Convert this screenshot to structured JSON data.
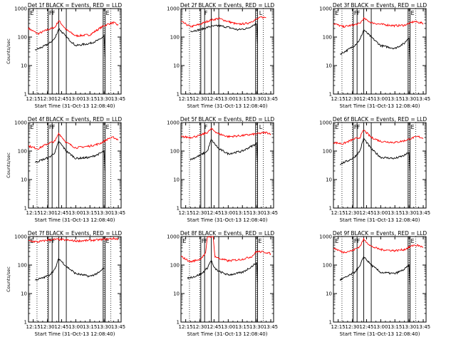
{
  "colors": {
    "events": "#000000",
    "lld": "#ff0000",
    "axis": "#000000"
  },
  "chart_data": [
    {
      "type": "line",
      "title": "Det 1f BLACK = Events, RED = LLD",
      "xlabel": "Start Time (31-Oct-13 12:08:40)",
      "ylabel": "Counts/sec",
      "y_scale": "log",
      "ylim": [
        1,
        1000
      ],
      "xlim": [
        "12:10",
        "13:48"
      ],
      "x_ticks": [
        "12:15",
        "12:30",
        "12:45",
        "13:00",
        "13:15",
        "13:30",
        "13:45"
      ],
      "y_ticks": [
        "1",
        "10",
        "100",
        "1000"
      ],
      "markers": [
        "E",
        "F",
        "F",
        "E"
      ],
      "series": [
        {
          "color": "red",
          "x": [
            "12:10",
            "12:20",
            "12:30",
            "12:38",
            "12:42",
            "12:50",
            "13:00",
            "13:15",
            "13:25",
            "13:30",
            "13:35",
            "13:40",
            "13:45"
          ],
          "y": [
            200,
            130,
            180,
            220,
            380,
            180,
            110,
            120,
            200,
            250,
            290,
            320,
            260
          ]
        },
        {
          "color": "black",
          "x": [
            "12:17",
            "12:25",
            "12:32",
            "12:38",
            "12:42",
            "12:50",
            "13:00",
            "13:15",
            "13:25",
            "13:30",
            "13:31"
          ],
          "y": [
            35,
            45,
            60,
            90,
            200,
            100,
            50,
            60,
            80,
            110,
            20
          ]
        }
      ]
    },
    {
      "type": "line",
      "title": "Det 2f BLACK = Events, RED = LLD",
      "xlabel": "Start Time (31-Oct-13 12:08:40)",
      "ylabel": "",
      "y_scale": "log",
      "ylim": [
        1,
        1000
      ],
      "xlim": [
        "12:10",
        "13:48"
      ],
      "x_ticks": [
        "12:15",
        "12:30",
        "12:45",
        "13:00",
        "13:15",
        "13:30",
        "13:45"
      ],
      "y_ticks": [
        "1",
        "10",
        "100",
        "1000"
      ],
      "markers": [
        "F",
        "L"
      ],
      "series": [
        {
          "color": "red",
          "x": [
            "12:10",
            "12:20",
            "12:30",
            "12:40",
            "12:50",
            "13:00",
            "13:10",
            "13:20",
            "13:30",
            "13:35",
            "13:40"
          ],
          "y": [
            350,
            230,
            280,
            380,
            450,
            350,
            280,
            300,
            420,
            500,
            480
          ]
        },
        {
          "color": "black",
          "x": [
            "12:20",
            "12:30",
            "12:40",
            "12:50",
            "13:00",
            "13:10",
            "13:20",
            "13:30",
            "13:31"
          ],
          "y": [
            160,
            180,
            230,
            250,
            220,
            180,
            200,
            300,
            60
          ]
        }
      ]
    },
    {
      "type": "line",
      "title": "Det 3f BLACK = Events, RED = LLD",
      "xlabel": "Start Time (31-Oct-13 12:08:40)",
      "ylabel": "",
      "y_scale": "log",
      "ylim": [
        1,
        1000
      ],
      "xlim": [
        "12:10",
        "13:48"
      ],
      "x_ticks": [
        "12:15",
        "12:30",
        "12:45",
        "13:00",
        "13:15",
        "13:30",
        "13:45"
      ],
      "y_ticks": [
        "1",
        "10",
        "100",
        "1000"
      ],
      "markers": [
        "E",
        "F",
        "F",
        "E"
      ],
      "series": [
        {
          "color": "red",
          "x": [
            "12:10",
            "12:20",
            "12:30",
            "12:38",
            "12:42",
            "12:50",
            "13:00",
            "13:15",
            "13:25",
            "13:30",
            "13:35",
            "13:40",
            "13:45"
          ],
          "y": [
            300,
            230,
            260,
            300,
            450,
            320,
            280,
            250,
            260,
            300,
            350,
            330,
            300
          ]
        },
        {
          "color": "black",
          "x": [
            "12:17",
            "12:25",
            "12:32",
            "12:38",
            "12:42",
            "12:50",
            "13:00",
            "13:15",
            "13:25",
            "13:30",
            "13:31"
          ],
          "y": [
            25,
            35,
            50,
            80,
            180,
            100,
            50,
            40,
            60,
            100,
            15
          ]
        }
      ]
    },
    {
      "type": "line",
      "title": "Det 4f BLACK = Events, RED = LLD",
      "xlabel": "Start Time (31-Oct-13 12:08:40)",
      "ylabel": "Counts/sec",
      "y_scale": "log",
      "ylim": [
        1,
        1000
      ],
      "xlim": [
        "12:10",
        "13:48"
      ],
      "x_ticks": [
        "12:15",
        "12:30",
        "12:45",
        "13:00",
        "13:15",
        "13:30",
        "13:45"
      ],
      "y_ticks": [
        "1",
        "10",
        "100",
        "1000"
      ],
      "markers": [
        "E",
        "F",
        "F",
        "E"
      ],
      "series": [
        {
          "color": "red",
          "x": [
            "12:10",
            "12:20",
            "12:30",
            "12:38",
            "12:42",
            "12:50",
            "13:00",
            "13:15",
            "13:25",
            "13:30",
            "13:35",
            "13:40",
            "13:45"
          ],
          "y": [
            150,
            120,
            180,
            220,
            420,
            200,
            130,
            150,
            180,
            220,
            280,
            300,
            250
          ]
        },
        {
          "color": "black",
          "x": [
            "12:17",
            "12:25",
            "12:32",
            "12:38",
            "12:42",
            "12:50",
            "13:00",
            "13:15",
            "13:25",
            "13:30",
            "13:31"
          ],
          "y": [
            40,
            50,
            60,
            90,
            220,
            100,
            55,
            60,
            80,
            100,
            20
          ]
        }
      ]
    },
    {
      "type": "line",
      "title": "Det 5f BLACK = Events, RED = LLD",
      "xlabel": "Start Time (31-Oct-13 12:08:40)",
      "ylabel": "",
      "y_scale": "log",
      "ylim": [
        1,
        1000
      ],
      "xlim": [
        "12:10",
        "13:48"
      ],
      "x_ticks": [
        "12:15",
        "12:30",
        "12:45",
        "13:00",
        "13:15",
        "13:30",
        "13:45"
      ],
      "y_ticks": [
        "1",
        "10",
        "100",
        "1000"
      ],
      "markers": [
        "F",
        "L"
      ],
      "series": [
        {
          "color": "red",
          "x": [
            "12:10",
            "12:20",
            "12:30",
            "12:38",
            "12:42",
            "12:50",
            "13:00",
            "13:15",
            "13:30",
            "13:40",
            "13:45"
          ],
          "y": [
            320,
            300,
            350,
            450,
            600,
            400,
            320,
            350,
            400,
            450,
            400
          ]
        },
        {
          "color": "black",
          "x": [
            "12:20",
            "12:30",
            "12:38",
            "12:42",
            "12:50",
            "13:00",
            "13:15",
            "13:25",
            "13:30",
            "13:31"
          ],
          "y": [
            50,
            70,
            100,
            250,
            120,
            80,
            100,
            150,
            180,
            40
          ]
        }
      ]
    },
    {
      "type": "line",
      "title": "Det 6f BLACK = Events, RED = LLD",
      "xlabel": "Start Time (31-Oct-13 12:08:40)",
      "ylabel": "",
      "y_scale": "log",
      "ylim": [
        1,
        1000
      ],
      "xlim": [
        "12:10",
        "13:48"
      ],
      "x_ticks": [
        "12:15",
        "12:30",
        "12:45",
        "13:00",
        "13:15",
        "13:30",
        "13:45"
      ],
      "y_ticks": [
        "1",
        "10",
        "100",
        "1000"
      ],
      "markers": [
        "E",
        "F",
        "F",
        "E"
      ],
      "series": [
        {
          "color": "red",
          "x": [
            "12:10",
            "12:20",
            "12:30",
            "12:38",
            "12:42",
            "12:50",
            "13:00",
            "13:15",
            "13:25",
            "13:30",
            "13:35",
            "13:40",
            "13:45"
          ],
          "y": [
            200,
            180,
            250,
            300,
            550,
            300,
            220,
            200,
            230,
            260,
            300,
            320,
            280
          ]
        },
        {
          "color": "black",
          "x": [
            "12:17",
            "12:25",
            "12:32",
            "12:38",
            "12:42",
            "12:50",
            "13:00",
            "13:15",
            "13:25",
            "13:30",
            "13:31"
          ],
          "y": [
            35,
            45,
            60,
            100,
            280,
            120,
            60,
            55,
            70,
            90,
            20
          ]
        }
      ]
    },
    {
      "type": "line",
      "title": "Det 7f BLACK = Events, RED = LLD",
      "xlabel": "Start Time (31-Oct-13 12:08:40)",
      "ylabel": "Counts/sec",
      "y_scale": "log",
      "ylim": [
        1,
        1000
      ],
      "xlim": [
        "12:10",
        "13:48"
      ],
      "x_ticks": [
        "12:15",
        "12:30",
        "12:45",
        "13:00",
        "13:15",
        "13:30",
        "13:45"
      ],
      "y_ticks": [
        "1",
        "10",
        "100",
        "1000"
      ],
      "markers": [
        "E",
        "F",
        "F",
        "E"
      ],
      "series": [
        {
          "color": "red",
          "x": [
            "12:10",
            "12:20",
            "12:30",
            "12:40",
            "12:50",
            "13:00",
            "13:10",
            "13:20",
            "13:30",
            "13:40",
            "13:45"
          ],
          "y": [
            700,
            650,
            750,
            800,
            750,
            700,
            720,
            750,
            800,
            850,
            820
          ]
        },
        {
          "color": "black",
          "x": [
            "12:17",
            "12:25",
            "12:32",
            "12:38",
            "12:42",
            "12:50",
            "13:00",
            "13:15",
            "13:25",
            "13:28",
            "13:30"
          ],
          "y": [
            30,
            35,
            45,
            70,
            170,
            90,
            50,
            40,
            55,
            70,
            80
          ]
        }
      ]
    },
    {
      "type": "line",
      "title": "Det 8f BLACK = Events, RED = LLD",
      "xlabel": "Start Time (31-Oct-13 12:08:40)",
      "ylabel": "",
      "y_scale": "log",
      "ylim": [
        1,
        1000
      ],
      "xlim": [
        "12:10",
        "13:48"
      ],
      "x_ticks": [
        "12:15",
        "12:30",
        "12:45",
        "13:00",
        "13:15",
        "13:30",
        "13:45"
      ],
      "y_ticks": [
        "1",
        "10",
        "100",
        "1000"
      ],
      "markers": [
        "E",
        "F",
        "F",
        "E"
      ],
      "series": [
        {
          "color": "red",
          "x": [
            "12:10",
            "12:20",
            "12:30",
            "12:36",
            "12:38",
            "12:40",
            "12:42",
            "12:44",
            "12:46",
            "12:50",
            "13:00",
            "13:15",
            "13:25",
            "13:30",
            "13:40",
            "13:45"
          ],
          "y": [
            200,
            130,
            160,
            250,
            1000,
            1000,
            1000,
            1000,
            200,
            170,
            140,
            160,
            200,
            300,
            280,
            250
          ]
        },
        {
          "color": "black",
          "x": [
            "12:17",
            "12:25",
            "12:32",
            "12:38",
            "12:42",
            "12:45",
            "12:50",
            "13:00",
            "13:15",
            "13:25",
            "13:30",
            "13:31"
          ],
          "y": [
            35,
            40,
            50,
            80,
            150,
            80,
            60,
            45,
            55,
            90,
            120,
            25
          ]
        }
      ]
    },
    {
      "type": "line",
      "title": "Det 9f BLACK = Events, RED = LLD",
      "xlabel": "Start Time (31-Oct-13 12:08:40)",
      "ylabel": "",
      "y_scale": "log",
      "ylim": [
        1,
        1000
      ],
      "xlim": [
        "12:10",
        "13:48"
      ],
      "x_ticks": [
        "12:15",
        "12:30",
        "12:45",
        "13:00",
        "13:15",
        "13:30",
        "13:45"
      ],
      "y_ticks": [
        "1",
        "10",
        "100",
        "1000"
      ],
      "markers": [
        "E",
        "F",
        "F",
        "E"
      ],
      "series": [
        {
          "color": "red",
          "x": [
            "12:10",
            "12:20",
            "12:30",
            "12:38",
            "12:42",
            "12:50",
            "13:00",
            "13:15",
            "13:25",
            "13:30",
            "13:35",
            "13:40",
            "13:45"
          ],
          "y": [
            400,
            280,
            320,
            450,
            800,
            450,
            350,
            320,
            350,
            420,
            500,
            480,
            420
          ]
        },
        {
          "color": "black",
          "x": [
            "12:17",
            "12:25",
            "12:32",
            "12:38",
            "12:42",
            "12:50",
            "13:00",
            "13:15",
            "13:25",
            "13:30",
            "13:31"
          ],
          "y": [
            30,
            40,
            55,
            90,
            200,
            100,
            55,
            50,
            70,
            100,
            20
          ]
        }
      ]
    }
  ]
}
